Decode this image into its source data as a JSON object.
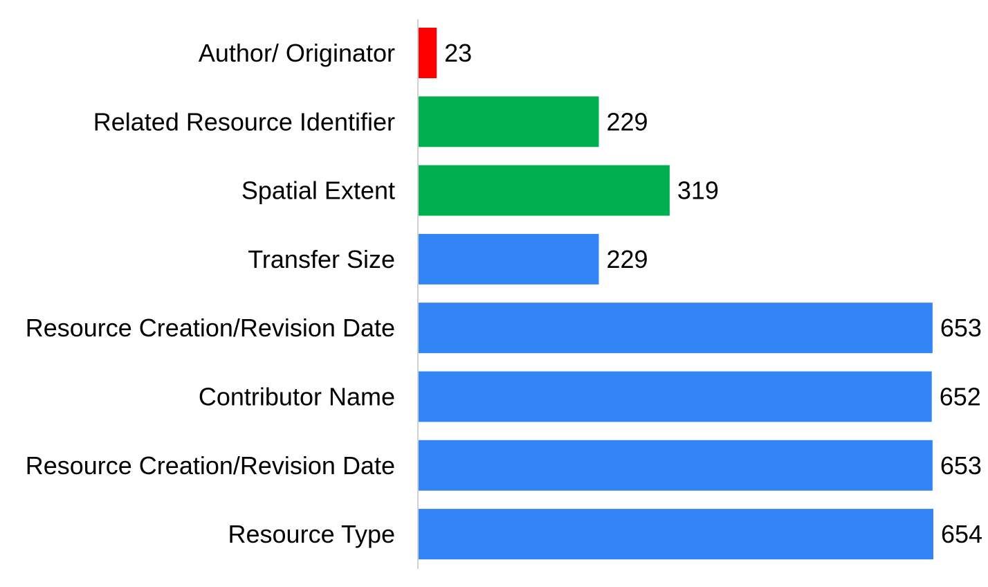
{
  "chart_data": {
    "type": "bar",
    "orientation": "horizontal",
    "categories": [
      "Author/ Originator",
      "Related Resource Identifier",
      "Spatial Extent",
      "Transfer Size",
      "Resource Creation/Revision Date",
      "Contributor Name",
      "Resource Creation/Revision Date",
      "Resource Type"
    ],
    "values": [
      23,
      229,
      319,
      229,
      653,
      652,
      653,
      654
    ],
    "bar_colors": [
      "#ff0000",
      "#00b050",
      "#00b050",
      "#3385f5",
      "#3385f5",
      "#3385f5",
      "#3385f5",
      "#3385f5"
    ],
    "data_labels": [
      "23",
      "229",
      "319",
      "229",
      "653",
      "652",
      "653",
      "654"
    ],
    "title": "",
    "xlabel": "",
    "ylabel": "",
    "xlim": [
      0,
      654
    ],
    "grid": false,
    "legend": "none"
  }
}
